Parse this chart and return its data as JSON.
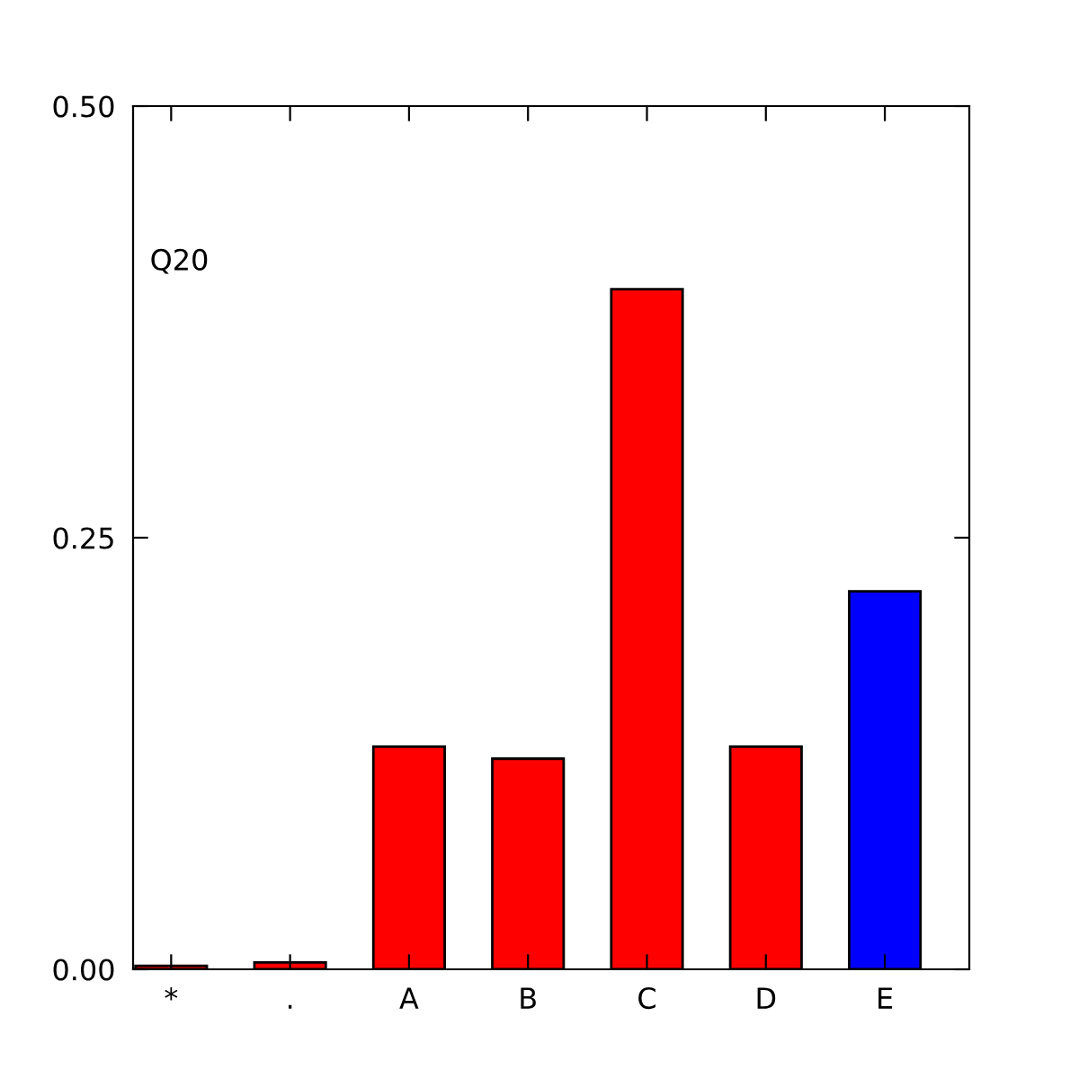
{
  "chart_data": {
    "type": "bar",
    "categories": [
      "*",
      ".",
      "A",
      "B",
      "C",
      "D",
      "E"
    ],
    "values": [
      0.002,
      0.004,
      0.129,
      0.122,
      0.394,
      0.129,
      0.219
    ],
    "colors": [
      "#ff0000",
      "#ff0000",
      "#ff0000",
      "#ff0000",
      "#ff0000",
      "#ff0000",
      "#0000ff"
    ],
    "ylim": [
      0,
      0.5
    ],
    "yticks": [
      {
        "value": 0,
        "label": "0.00"
      },
      {
        "value": 0.25,
        "label": "0.25"
      },
      {
        "value": 0.5,
        "label": "0.50"
      }
    ],
    "annotations": [
      "Q20"
    ],
    "grid": false
  }
}
